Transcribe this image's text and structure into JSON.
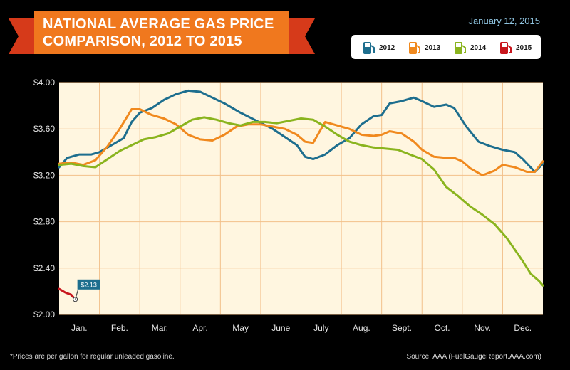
{
  "title_lines": [
    "NATIONAL AVERAGE GAS PRICE",
    "COMPARISON, 2012 TO 2015"
  ],
  "date": "January 12, 2015",
  "footnote": "*Prices are per gallon for regular unleaded gasoline.",
  "source": "Source: AAA (FuelGaugeReport.AAA.com)",
  "colors": {
    "banner": "#f0781e",
    "banner_tail": "#d63a1a",
    "plot_bg": "#fff6e0",
    "grid": "#f2c08a"
  },
  "legend": [
    {
      "label": "2012",
      "icon": "gas-pump-icon"
    },
    {
      "label": "2013",
      "icon": "gas-pump-icon"
    },
    {
      "label": "2014",
      "icon": "gas-pump-icon"
    },
    {
      "label": "2015",
      "icon": "gas-pump-icon"
    }
  ],
  "chart_data": {
    "type": "line",
    "title": "NATIONAL AVERAGE GAS PRICE COMPARISON, 2012 TO 2015",
    "xlabel": "",
    "ylabel": "",
    "x_range": [
      0,
      12
    ],
    "ylim": [
      2.0,
      4.0
    ],
    "yticks": [
      "$2.00",
      "$2.40",
      "$2.80",
      "$3.20",
      "$3.60",
      "$4.00"
    ],
    "ytick_values": [
      2.0,
      2.4,
      2.8,
      3.2,
      3.6,
      4.0
    ],
    "categories": [
      "Jan.",
      "Feb.",
      "Mar.",
      "Apr.",
      "May",
      "June",
      "July",
      "Aug.",
      "Sept.",
      "Oct.",
      "Nov.",
      "Dec."
    ],
    "grid": true,
    "legend_position": "top-right",
    "annotation": {
      "text": "$2.13",
      "series": "2015",
      "x": 0.4,
      "y": 2.13
    },
    "series": [
      {
        "name": "2012",
        "color": "#1d6e8e",
        "x": [
          0,
          0.2,
          0.5,
          0.8,
          1.0,
          1.3,
          1.6,
          1.8,
          2.0,
          2.3,
          2.6,
          2.9,
          3.2,
          3.5,
          3.8,
          4.1,
          4.5,
          4.9,
          5.3,
          5.6,
          5.9,
          6.1,
          6.3,
          6.6,
          6.9,
          7.2,
          7.5,
          7.8,
          8.0,
          8.2,
          8.5,
          8.8,
          9.0,
          9.3,
          9.6,
          9.8,
          10.1,
          10.4,
          10.7,
          11.0,
          11.3,
          11.5,
          11.8,
          12.0
        ],
        "y": [
          3.27,
          3.35,
          3.38,
          3.38,
          3.4,
          3.46,
          3.52,
          3.66,
          3.74,
          3.78,
          3.85,
          3.9,
          3.93,
          3.92,
          3.87,
          3.82,
          3.74,
          3.67,
          3.6,
          3.53,
          3.46,
          3.36,
          3.34,
          3.38,
          3.46,
          3.52,
          3.64,
          3.71,
          3.72,
          3.82,
          3.84,
          3.87,
          3.84,
          3.79,
          3.81,
          3.78,
          3.62,
          3.49,
          3.45,
          3.42,
          3.4,
          3.34,
          3.23,
          3.3
        ]
      },
      {
        "name": "2013",
        "color": "#f0891e",
        "x": [
          0,
          0.3,
          0.6,
          0.9,
          1.2,
          1.5,
          1.8,
          2.0,
          2.3,
          2.6,
          2.9,
          3.2,
          3.5,
          3.8,
          4.1,
          4.4,
          4.7,
          5.0,
          5.3,
          5.6,
          5.9,
          6.1,
          6.3,
          6.6,
          6.9,
          7.2,
          7.5,
          7.8,
          8.0,
          8.2,
          8.5,
          8.8,
          9.0,
          9.3,
          9.6,
          9.8,
          10.0,
          10.2,
          10.5,
          10.8,
          11.0,
          11.3,
          11.6,
          11.8,
          12.0
        ],
        "y": [
          3.3,
          3.31,
          3.29,
          3.33,
          3.45,
          3.6,
          3.77,
          3.77,
          3.72,
          3.69,
          3.64,
          3.55,
          3.51,
          3.5,
          3.55,
          3.62,
          3.64,
          3.64,
          3.62,
          3.6,
          3.55,
          3.49,
          3.48,
          3.66,
          3.63,
          3.6,
          3.55,
          3.54,
          3.55,
          3.58,
          3.56,
          3.49,
          3.42,
          3.36,
          3.35,
          3.35,
          3.32,
          3.26,
          3.2,
          3.24,
          3.29,
          3.27,
          3.23,
          3.23,
          3.32
        ]
      },
      {
        "name": "2014",
        "color": "#8ab41e",
        "x": [
          0,
          0.3,
          0.6,
          0.9,
          1.2,
          1.5,
          1.8,
          2.1,
          2.4,
          2.7,
          3.0,
          3.3,
          3.6,
          3.9,
          4.2,
          4.5,
          4.8,
          5.1,
          5.4,
          5.7,
          6.0,
          6.3,
          6.6,
          6.9,
          7.2,
          7.5,
          7.8,
          8.1,
          8.4,
          8.7,
          9.0,
          9.3,
          9.6,
          9.9,
          10.2,
          10.5,
          10.8,
          11.1,
          11.3,
          11.5,
          11.7,
          11.9,
          12.0
        ],
        "y": [
          3.29,
          3.3,
          3.28,
          3.27,
          3.34,
          3.41,
          3.46,
          3.51,
          3.53,
          3.56,
          3.62,
          3.68,
          3.7,
          3.68,
          3.65,
          3.63,
          3.66,
          3.66,
          3.65,
          3.67,
          3.69,
          3.68,
          3.62,
          3.55,
          3.49,
          3.46,
          3.44,
          3.43,
          3.42,
          3.38,
          3.34,
          3.25,
          3.1,
          3.02,
          2.93,
          2.86,
          2.78,
          2.66,
          2.56,
          2.46,
          2.35,
          2.29,
          2.25
        ]
      },
      {
        "name": "2015",
        "color": "#c8161d",
        "x": [
          0,
          0.15,
          0.3,
          0.4
        ],
        "y": [
          2.22,
          2.19,
          2.17,
          2.13
        ]
      }
    ]
  }
}
